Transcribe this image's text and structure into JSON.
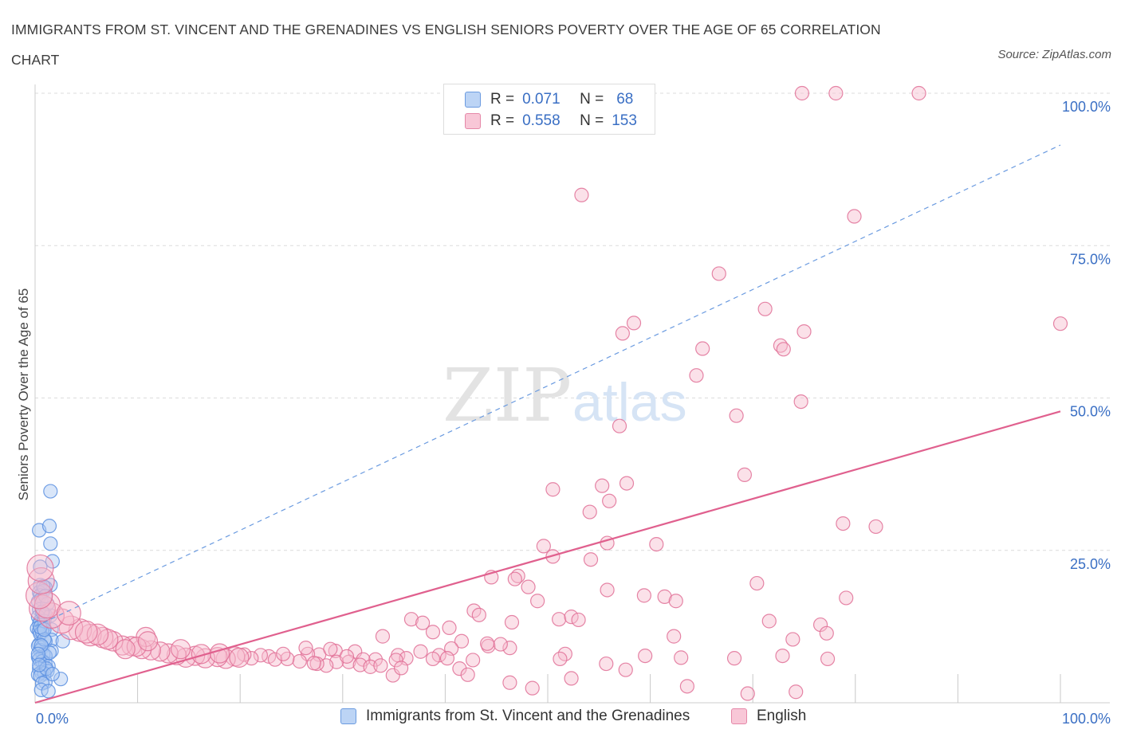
{
  "title": "IMMIGRANTS FROM ST. VINCENT AND THE GRENADINES VS ENGLISH SENIORS POVERTY OVER THE AGE OF 65 CORRELATION CHART",
  "source": "Source: ZipAtlas.com",
  "watermark": {
    "zip": "ZIP",
    "atlas": "atlas"
  },
  "stats_legend": [
    {
      "r_label": "R =",
      "r_value": "0.071",
      "n_label": "N =",
      "n_value": "68"
    },
    {
      "r_label": "R =",
      "r_value": "0.558",
      "n_label": "N =",
      "n_value": "153"
    }
  ],
  "chart_data": {
    "type": "scatter",
    "ylabel": "Seniors Poverty Over the Age of 65",
    "xlim": [
      0,
      100
    ],
    "ylim": [
      0,
      100
    ],
    "x_tick_labels": [
      "0.0%",
      "100.0%"
    ],
    "y_tick_labels": [
      "25.0%",
      "50.0%",
      "75.0%",
      "100.0%"
    ],
    "grid": true,
    "legend_position": "bottom",
    "series": [
      {
        "name": "Immigrants from St. Vincent and the Grenadines",
        "color": "#5b8fe0",
        "fill": "#aac8f2",
        "trend": {
          "x": [
            0,
            100
          ],
          "y": [
            12.5,
            91.5
          ],
          "style": "dashed"
        },
        "points": [
          [
            1.5,
            34.7
          ],
          [
            0.4,
            28.3
          ],
          [
            1.4,
            29.0
          ],
          [
            1.5,
            26.1
          ],
          [
            1.7,
            23.2
          ],
          [
            0.5,
            22.3
          ],
          [
            1.5,
            19.3
          ],
          [
            0.5,
            19.3
          ],
          [
            1.0,
            18.9
          ],
          [
            0.4,
            18.1
          ],
          [
            0.8,
            18.3
          ],
          [
            0.5,
            17.6
          ],
          [
            0.3,
            16.6
          ],
          [
            0.6,
            17.0
          ],
          [
            0.4,
            15.3
          ],
          [
            0.8,
            14.6
          ],
          [
            1.0,
            14.4
          ],
          [
            1.5,
            14.3
          ],
          [
            0.3,
            14.1
          ],
          [
            0.5,
            13.4
          ],
          [
            0.6,
            12.8
          ],
          [
            0.4,
            12.9
          ],
          [
            0.2,
            12.2
          ],
          [
            0.8,
            12.3
          ],
          [
            1.6,
            12.0
          ],
          [
            0.4,
            11.8
          ],
          [
            0.5,
            11.3
          ],
          [
            0.7,
            11.6
          ],
          [
            1.6,
            10.3
          ],
          [
            1.0,
            10.1
          ],
          [
            0.4,
            9.6
          ],
          [
            0.3,
            9.3
          ],
          [
            0.7,
            9.1
          ],
          [
            0.5,
            8.6
          ],
          [
            1.6,
            8.5
          ],
          [
            0.8,
            7.9
          ],
          [
            1.0,
            7.7
          ],
          [
            0.3,
            7.5
          ],
          [
            0.4,
            7.1
          ],
          [
            0.7,
            6.8
          ],
          [
            1.0,
            6.4
          ],
          [
            1.3,
            6.0
          ],
          [
            0.4,
            5.6
          ],
          [
            1.2,
            5.2
          ],
          [
            0.6,
            5.0
          ],
          [
            0.9,
            4.8
          ],
          [
            0.3,
            4.6
          ],
          [
            0.5,
            4.4
          ],
          [
            2.5,
            3.9
          ],
          [
            1.0,
            3.4
          ],
          [
            0.7,
            3.2
          ],
          [
            0.6,
            2.1
          ],
          [
            1.3,
            1.9
          ],
          [
            2.7,
            10.1
          ],
          [
            1.4,
            8.2
          ],
          [
            0.8,
            19.1
          ],
          [
            1.2,
            16.2
          ],
          [
            0.9,
            13.4
          ],
          [
            0.9,
            10.4
          ],
          [
            0.6,
            9.4
          ],
          [
            1.1,
            5.6
          ],
          [
            0.5,
            12.4
          ],
          [
            0.7,
            14.9
          ],
          [
            0.3,
            8.0
          ],
          [
            1.0,
            17.5
          ],
          [
            0.4,
            6.2
          ],
          [
            1.7,
            4.7
          ],
          [
            0.9,
            12.0
          ]
        ]
      },
      {
        "name": "English",
        "color": "#e07096",
        "fill": "#f6bccf",
        "trend": {
          "x": [
            0,
            100
          ],
          "y": [
            0.0,
            47.8
          ],
          "style": "solid"
        },
        "points": [
          [
            74.8,
            100
          ],
          [
            78.1,
            100
          ],
          [
            86.2,
            100
          ],
          [
            53.3,
            83.3
          ],
          [
            79.9,
            79.8
          ],
          [
            66.7,
            70.4
          ],
          [
            71.2,
            64.6
          ],
          [
            58.4,
            62.3
          ],
          [
            100,
            62.2
          ],
          [
            57.3,
            60.6
          ],
          [
            75.0,
            60.9
          ],
          [
            72.7,
            58.6
          ],
          [
            73.0,
            58.0
          ],
          [
            65.1,
            58.1
          ],
          [
            64.5,
            53.7
          ],
          [
            74.7,
            49.4
          ],
          [
            68.4,
            47.1
          ],
          [
            57.0,
            45.4
          ],
          [
            69.2,
            37.4
          ],
          [
            57.7,
            36.0
          ],
          [
            55.3,
            35.6
          ],
          [
            50.5,
            35.0
          ],
          [
            56.0,
            33.1
          ],
          [
            54.1,
            31.3
          ],
          [
            78.8,
            29.4
          ],
          [
            82.0,
            28.9
          ],
          [
            60.6,
            26.0
          ],
          [
            49.6,
            25.7
          ],
          [
            55.8,
            26.2
          ],
          [
            50.5,
            24.0
          ],
          [
            54.2,
            23.5
          ],
          [
            44.5,
            20.6
          ],
          [
            47.1,
            20.8
          ],
          [
            48.1,
            19.0
          ],
          [
            70.4,
            19.6
          ],
          [
            46.8,
            20.3
          ],
          [
            55.8,
            18.5
          ],
          [
            59.4,
            17.6
          ],
          [
            61.4,
            17.4
          ],
          [
            62.5,
            16.7
          ],
          [
            49.0,
            16.7
          ],
          [
            79.1,
            17.2
          ],
          [
            42.8,
            15.1
          ],
          [
            43.3,
            14.4
          ],
          [
            51.1,
            13.7
          ],
          [
            52.3,
            14.1
          ],
          [
            53.0,
            13.6
          ],
          [
            46.5,
            13.2
          ],
          [
            36.7,
            13.7
          ],
          [
            37.8,
            13.1
          ],
          [
            40.4,
            12.3
          ],
          [
            71.6,
            13.4
          ],
          [
            76.6,
            12.8
          ],
          [
            38.8,
            11.6
          ],
          [
            77.2,
            11.4
          ],
          [
            33.9,
            10.9
          ],
          [
            62.3,
            10.9
          ],
          [
            73.9,
            10.4
          ],
          [
            41.6,
            10.1
          ],
          [
            44.2,
            9.3
          ],
          [
            46.3,
            9.0
          ],
          [
            40.6,
            8.9
          ],
          [
            31.2,
            8.4
          ],
          [
            27.7,
            7.9
          ],
          [
            26.6,
            8.0
          ],
          [
            29.3,
            8.5
          ],
          [
            37.6,
            8.4
          ],
          [
            35.4,
            7.8
          ],
          [
            39.4,
            7.8
          ],
          [
            36.2,
            7.3
          ],
          [
            35.2,
            7.0
          ],
          [
            33.2,
            7.1
          ],
          [
            32.0,
            7.1
          ],
          [
            30.6,
            6.7
          ],
          [
            29.4,
            6.7
          ],
          [
            28.4,
            6.1
          ],
          [
            27.5,
            6.4
          ],
          [
            25.8,
            6.8
          ],
          [
            24.6,
            7.2
          ],
          [
            22.8,
            7.6
          ],
          [
            22.0,
            7.8
          ],
          [
            21.1,
            7.3
          ],
          [
            20.4,
            7.9
          ],
          [
            19.5,
            7.6
          ],
          [
            18.6,
            7.2
          ],
          [
            17.8,
            7.5
          ],
          [
            16.6,
            7.3
          ],
          [
            15.6,
            7.7
          ],
          [
            14.7,
            7.4
          ],
          [
            13.8,
            7.8
          ],
          [
            13.0,
            8.1
          ],
          [
            12.2,
            8.4
          ],
          [
            11.3,
            8.6
          ],
          [
            10.4,
            8.8
          ],
          [
            9.4,
            9.3
          ],
          [
            8.5,
            9.4
          ],
          [
            7.6,
            10.1
          ],
          [
            6.6,
            10.7
          ],
          [
            5.4,
            11.1
          ],
          [
            4.4,
            11.9
          ],
          [
            3.5,
            12.3
          ],
          [
            2.6,
            13.4
          ],
          [
            1.6,
            14.3
          ],
          [
            0.7,
            15.5
          ],
          [
            1.2,
            16.0
          ],
          [
            0.4,
            17.6
          ],
          [
            0.6,
            20.0
          ],
          [
            0.5,
            22.1
          ],
          [
            10.8,
            10.8
          ],
          [
            9.9,
            9.2
          ],
          [
            8.8,
            8.8
          ],
          [
            7.1,
            10.4
          ],
          [
            6.1,
            11.2
          ],
          [
            5.0,
            11.6
          ],
          [
            14.2,
            8.8
          ],
          [
            16.2,
            8.0
          ],
          [
            18.0,
            8.1
          ],
          [
            19.9,
            7.4
          ],
          [
            23.4,
            7.1
          ],
          [
            24.2,
            8.0
          ],
          [
            26.4,
            9.0
          ],
          [
            28.8,
            8.8
          ],
          [
            30.4,
            7.6
          ],
          [
            31.7,
            6.2
          ],
          [
            32.7,
            5.9
          ],
          [
            33.7,
            6.1
          ],
          [
            34.9,
            4.5
          ],
          [
            35.7,
            5.7
          ],
          [
            38.8,
            7.2
          ],
          [
            40.2,
            7.3
          ],
          [
            41.4,
            5.6
          ],
          [
            42.2,
            4.6
          ],
          [
            44.1,
            9.7
          ],
          [
            45.4,
            9.6
          ],
          [
            51.7,
            8.0
          ],
          [
            51.2,
            7.2
          ],
          [
            55.7,
            6.4
          ],
          [
            57.6,
            5.4
          ],
          [
            59.5,
            7.7
          ],
          [
            63.0,
            7.4
          ],
          [
            68.2,
            7.3
          ],
          [
            72.9,
            7.7
          ],
          [
            77.3,
            7.2
          ],
          [
            46.3,
            3.3
          ],
          [
            52.3,
            4.0
          ],
          [
            63.6,
            2.7
          ],
          [
            69.5,
            1.5
          ],
          [
            74.2,
            1.8
          ],
          [
            48.5,
            2.4
          ],
          [
            11.0,
            10.1
          ],
          [
            3.3,
            14.7
          ],
          [
            27.2,
            6.5
          ],
          [
            42.7,
            7.0
          ]
        ]
      }
    ]
  }
}
